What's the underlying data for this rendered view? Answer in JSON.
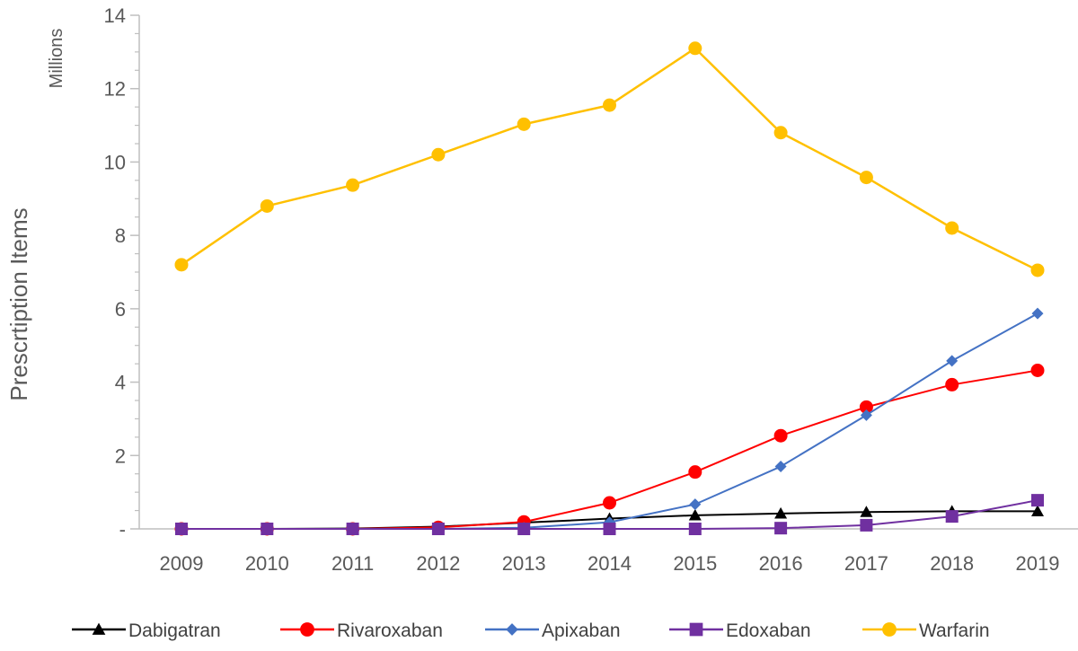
{
  "chart_data": {
    "type": "line",
    "title": "",
    "xlabel": "",
    "ylabel": "Prescrtiption Items",
    "y_unit_label": "Millions",
    "categories": [
      "2009",
      "2010",
      "2011",
      "2012",
      "2013",
      "2014",
      "2015",
      "2016",
      "2017",
      "2018",
      "2019"
    ],
    "y_ticks": [
      0,
      2,
      4,
      6,
      8,
      10,
      12,
      14
    ],
    "y_tick_labels": [
      "-",
      "2",
      "4",
      "6",
      "8",
      "10",
      "12",
      "14"
    ],
    "ylim": [
      0,
      14
    ],
    "grid": false,
    "legend_position": "bottom",
    "series": [
      {
        "name": "Dabigatran",
        "color": "#000000",
        "marker": "triangle",
        "values": [
          0.0,
          0.0,
          0.01,
          0.06,
          0.17,
          0.28,
          0.37,
          0.42,
          0.46,
          0.48,
          0.48
        ]
      },
      {
        "name": "Rivaroxaban",
        "color": "#ff0000",
        "marker": "circle",
        "values": [
          0.0,
          0.0,
          0.0,
          0.04,
          0.19,
          0.71,
          1.55,
          2.54,
          3.32,
          3.93,
          4.32
        ]
      },
      {
        "name": "Apixaban",
        "color": "#4472c4",
        "marker": "diamond",
        "values": [
          0.0,
          0.0,
          0.0,
          0.0,
          0.03,
          0.18,
          0.67,
          1.7,
          3.1,
          4.58,
          5.87
        ]
      },
      {
        "name": "Edoxaban",
        "color": "#7030a0",
        "marker": "square",
        "values": [
          0.0,
          0.0,
          0.0,
          0.0,
          0.0,
          0.0,
          0.0,
          0.02,
          0.1,
          0.34,
          0.78
        ]
      },
      {
        "name": "Warfarin",
        "color": "#ffc000",
        "marker": "circle",
        "values": [
          7.2,
          8.8,
          9.37,
          10.2,
          11.03,
          11.55,
          13.1,
          10.8,
          9.58,
          8.2,
          7.05
        ]
      }
    ]
  }
}
